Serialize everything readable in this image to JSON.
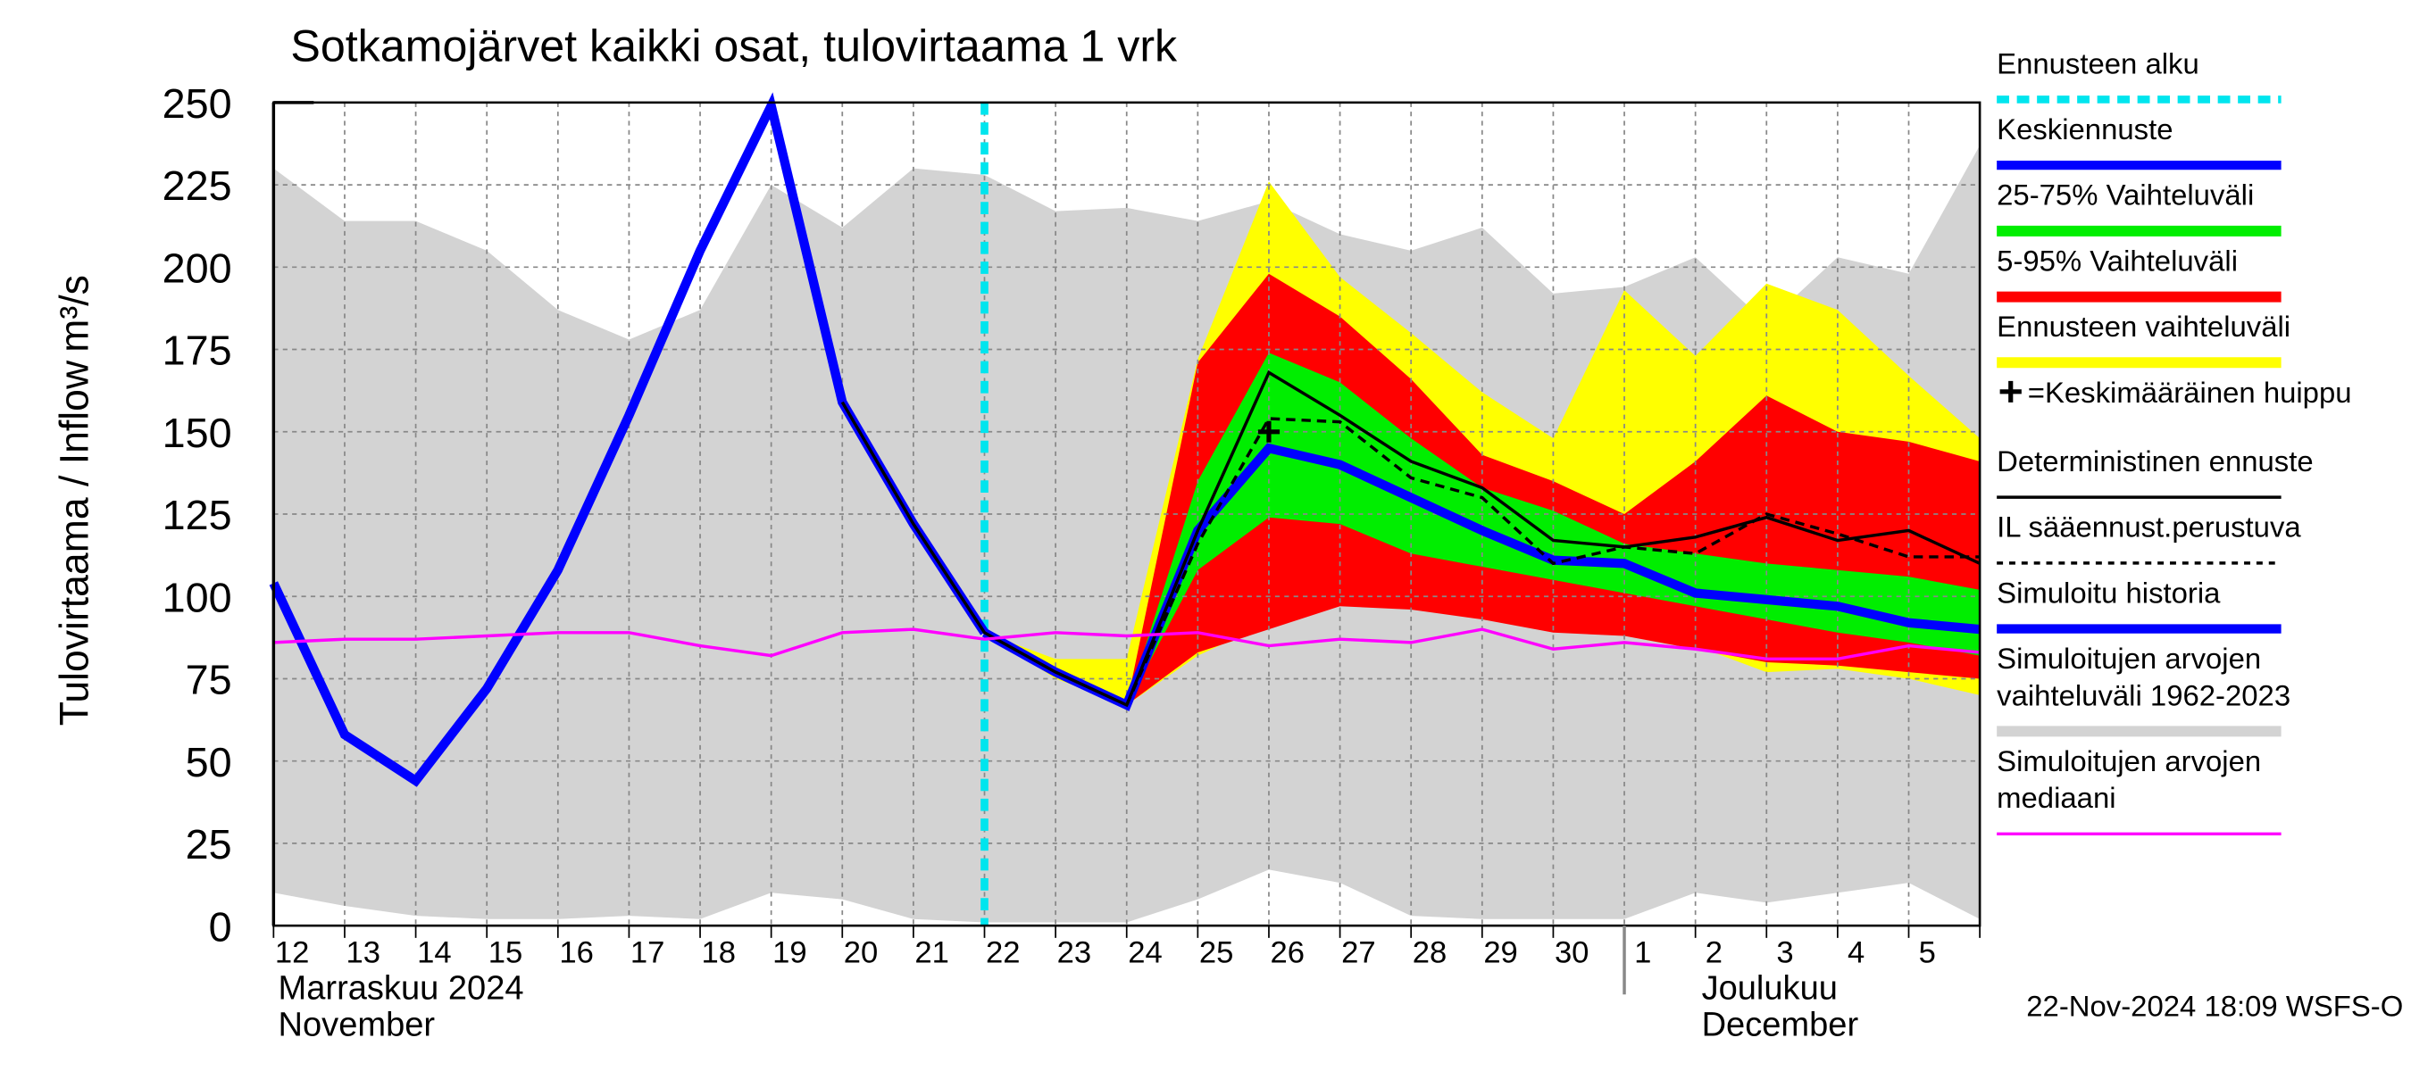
{
  "chart_data": {
    "type": "line",
    "title": "Sotkamojärvet kaikki osat, tulovirtaama 1 vrk",
    "ylabel": "Tulovirtaama / Inflow",
    "yunit": "m³/s",
    "categories": [
      "12",
      "13",
      "14",
      "15",
      "16",
      "17",
      "18",
      "19",
      "20",
      "21",
      "22",
      "23",
      "24",
      "25",
      "26",
      "27",
      "28",
      "29",
      "30",
      "1",
      "2",
      "3",
      "4",
      "5",
      null
    ],
    "months": [
      {
        "at": "12",
        "lines": [
          "Marraskuu 2024",
          "November"
        ]
      },
      {
        "at": "1",
        "lines": [
          "Joulukuu",
          "December"
        ]
      }
    ],
    "ylim": [
      0,
      250
    ],
    "yticks": [
      0,
      25,
      50,
      75,
      100,
      125,
      150,
      175,
      200,
      225,
      250
    ],
    "grid": true,
    "forecast_start": {
      "name": "Ennusteen alku",
      "color": "#00e5ee",
      "at": "22"
    },
    "peak": {
      "name": "=Keskimääräinen huippu",
      "at": "26",
      "value": 150,
      "color": "#000000"
    },
    "series": [
      {
        "name": [
          "Keskiennuste"
        ],
        "kind": "line",
        "color": "#0000ff",
        "width": 6,
        "values": [
          null,
          null,
          null,
          null,
          null,
          null,
          null,
          null,
          null,
          null,
          89,
          77,
          67,
          120,
          145,
          140,
          130,
          120,
          111,
          110,
          101,
          99,
          97,
          92,
          90
        ]
      },
      {
        "name": [
          "25-75% Vaihteluväli"
        ],
        "kind": "band",
        "color": "#00ee00",
        "upper": [
          null,
          null,
          null,
          null,
          null,
          null,
          null,
          null,
          null,
          null,
          89,
          77,
          67,
          135,
          174,
          165,
          148,
          133,
          126,
          116,
          113,
          110,
          108,
          106,
          102
        ],
        "lower": [
          null,
          null,
          null,
          null,
          null,
          null,
          null,
          null,
          null,
          null,
          89,
          77,
          67,
          108,
          124,
          122,
          113,
          109,
          105,
          101,
          97,
          93,
          89,
          86,
          82
        ]
      },
      {
        "name": [
          "5-95% Vaihteluväli"
        ],
        "kind": "band",
        "color": "#ff0000",
        "upper": [
          null,
          null,
          null,
          null,
          null,
          null,
          null,
          null,
          null,
          null,
          89,
          78,
          67,
          171,
          198,
          185,
          166,
          143,
          135,
          125,
          141,
          161,
          150,
          147,
          141
        ],
        "lower": [
          null,
          null,
          null,
          null,
          null,
          null,
          null,
          null,
          null,
          null,
          89,
          77,
          67,
          83,
          90,
          97,
          96,
          93,
          89,
          88,
          84,
          80,
          79,
          77,
          75
        ]
      },
      {
        "name": [
          "Ennusteen vaihteluväli"
        ],
        "kind": "band",
        "color": "#ffff00",
        "upper": [
          null,
          null,
          null,
          null,
          null,
          null,
          null,
          null,
          null,
          null,
          89,
          81,
          81,
          172,
          226,
          197,
          180,
          162,
          148,
          193,
          173,
          195,
          187,
          167,
          148
        ],
        "lower": [
          null,
          null,
          null,
          null,
          null,
          null,
          null,
          null,
          null,
          null,
          89,
          75,
          67,
          82,
          92,
          100,
          98,
          95,
          90,
          89,
          85,
          77,
          78,
          75,
          70
        ]
      },
      {
        "name": [
          "Deterministinen ennuste"
        ],
        "kind": "line",
        "color": "#000000",
        "width": 2,
        "values": [
          null,
          null,
          null,
          null,
          null,
          null,
          null,
          null,
          159,
          122,
          89,
          77,
          67,
          120,
          168,
          155,
          141,
          133,
          117,
          115,
          118,
          124,
          117,
          120,
          110
        ]
      },
      {
        "name": [
          "IL sääennust.perustuva"
        ],
        "kind": "line",
        "color": "#000000",
        "width": 2,
        "dashed": true,
        "values": [
          null,
          null,
          null,
          null,
          null,
          null,
          null,
          null,
          null,
          null,
          null,
          null,
          67,
          116,
          154,
          153,
          136,
          130,
          110,
          115,
          113,
          125,
          119,
          112,
          112
        ]
      },
      {
        "name": [
          "Simuloitu historia"
        ],
        "kind": "line",
        "color": "#0000ff",
        "width": 6,
        "values": [
          104,
          58,
          44,
          72,
          108,
          155,
          205,
          249,
          159,
          122,
          89,
          null,
          null,
          null,
          null,
          null,
          null,
          null,
          null,
          null,
          null,
          null,
          null,
          null,
          null
        ]
      },
      {
        "name": [
          "Simuloitujen arvojen",
          "vaihteluväli 1962-2023"
        ],
        "kind": "band",
        "color": "#d3d3d3",
        "upper": [
          230,
          214,
          214,
          205,
          187,
          178,
          187,
          225,
          212,
          230,
          228,
          217,
          218,
          214,
          220,
          210,
          205,
          212,
          192,
          194,
          203,
          183,
          203,
          198,
          237
        ],
        "lower": [
          10,
          6,
          3,
          2,
          2,
          3,
          2,
          10,
          8,
          2,
          1,
          1,
          1,
          8,
          17,
          13,
          3,
          2,
          2,
          2,
          10,
          7,
          10,
          13,
          2
        ]
      },
      {
        "name": [
          "Simuloitujen arvojen",
          "mediaani"
        ],
        "kind": "line",
        "color": "#ff00ff",
        "width": 2,
        "values": [
          86,
          87,
          87,
          88,
          89,
          89,
          85,
          82,
          89,
          90,
          87,
          89,
          88,
          89,
          85,
          87,
          86,
          90,
          84,
          86,
          84,
          81,
          81,
          85,
          83
        ]
      }
    ],
    "footer": "22-Nov-2024 18:09 WSFS-O"
  }
}
